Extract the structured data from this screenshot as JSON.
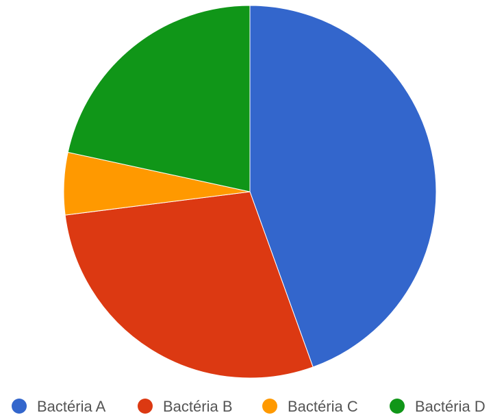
{
  "chart_data": {
    "type": "pie",
    "title": "",
    "legend_position": "bottom",
    "categories": [
      "Bactéria A",
      "Bactéria B",
      "Bactéria C",
      "Bactéria D"
    ],
    "values": [
      44.5,
      28.5,
      5.4,
      21.6
    ],
    "colors": [
      "#3366CC",
      "#DC3912",
      "#FF9900",
      "#109618"
    ]
  }
}
